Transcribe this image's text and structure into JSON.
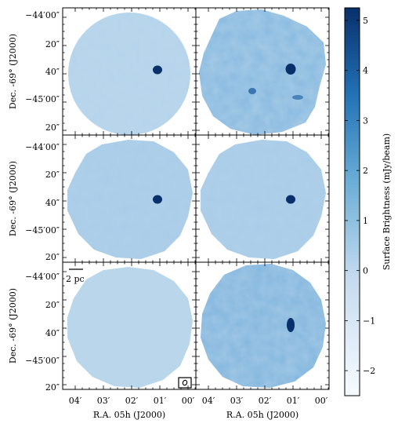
{
  "figure": {
    "y_tick_labels": [
      "−44′00″",
      "20″",
      "40″",
      "−45′00″",
      "20″"
    ],
    "x_tick_labels": [
      "04′",
      "03′",
      "02′",
      "01′",
      "00′"
    ],
    "ylabel": "Dec. -69° (J2000)",
    "xlabel": "R.A. 05h (J2000)",
    "scalebar_label": "2 pc"
  },
  "colorbar": {
    "label": "Surface Brightness (mJy/beam)",
    "ticks": [
      "5",
      "4",
      "3",
      "2",
      "1",
      "0",
      "−1",
      "−2"
    ],
    "range": [
      -2.5,
      5.25
    ],
    "colors": [
      "#f7fbff",
      "#c6dbef",
      "#6baed6",
      "#2171b5",
      "#08306b"
    ]
  },
  "panels": [
    {
      "id": "top-left",
      "shape": "circle",
      "source": true,
      "noise": "low"
    },
    {
      "id": "top-right",
      "shape": "irregular",
      "source": true,
      "noise": "high"
    },
    {
      "id": "middle-left",
      "shape": "irregular",
      "source": true,
      "noise": "medium"
    },
    {
      "id": "middle-right",
      "shape": "irregular",
      "source": true,
      "noise": "medium"
    },
    {
      "id": "bottom-left",
      "shape": "irregular",
      "source": false,
      "noise": "smooth"
    },
    {
      "id": "bottom-right",
      "shape": "irregular",
      "source": true,
      "noise": "high"
    }
  ]
}
